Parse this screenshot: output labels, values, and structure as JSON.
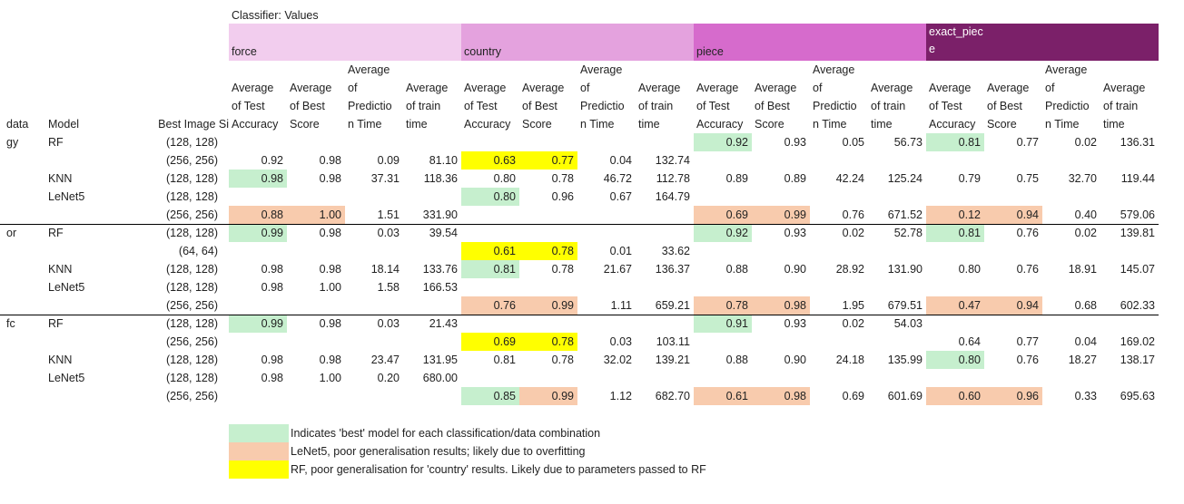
{
  "header": {
    "classifier_values": "Classifier: Values",
    "groups": [
      {
        "label": "force",
        "color": "#f2cdee"
      },
      {
        "label": "country",
        "color": "#e4a2de"
      },
      {
        "label": "piece",
        "color": "#d66bcc"
      },
      {
        "label": "exact_piece",
        "color": "#7b2069"
      }
    ],
    "row_labels": [
      "data",
      "gy",
      "Model",
      "Best Image Si"
    ],
    "metrics": [
      "Average of Test Accuracy",
      "Average of Best Score",
      "Average of Prediction Time",
      "Average of train time"
    ]
  },
  "colors": {
    "green": "#c6efce",
    "salmon": "#f8cbad",
    "yellow": "#ffff00"
  },
  "rows": [
    {
      "ds": "gy",
      "model": "RF",
      "size": "(128, 128)",
      "cells": [
        "",
        "",
        "",
        "",
        "",
        "",
        "",
        "",
        "0.92",
        "0.93",
        "0.05",
        "56.73",
        "0.81",
        "0.77",
        "0.02",
        "136.31"
      ],
      "hl": [
        "",
        "",
        "",
        "",
        "",
        "",
        "",
        "",
        "g",
        "",
        "",
        "",
        "g",
        "",
        "",
        ""
      ]
    },
    {
      "ds": "",
      "model": "",
      "size": "(256, 256)",
      "cells": [
        "0.92",
        "0.98",
        "0.09",
        "81.10",
        "0.63",
        "0.77",
        "0.04",
        "132.74",
        "",
        "",
        "",
        "",
        "",
        "",
        "",
        ""
      ],
      "hl": [
        "",
        "",
        "",
        "",
        "y",
        "y",
        "",
        "",
        "",
        "",
        "",
        "",
        "",
        "",
        "",
        ""
      ]
    },
    {
      "ds": "",
      "model": "KNN",
      "size": "(128, 128)",
      "cells": [
        "0.98",
        "0.98",
        "37.31",
        "118.36",
        "0.80",
        "0.78",
        "46.72",
        "112.78",
        "0.89",
        "0.89",
        "42.24",
        "125.24",
        "0.79",
        "0.75",
        "32.70",
        "119.44"
      ],
      "hl": [
        "g",
        "",
        "",
        "",
        "",
        "",
        "",
        "",
        "",
        "",
        "",
        "",
        "",
        "",
        "",
        ""
      ]
    },
    {
      "ds": "",
      "model": "LeNet5",
      "size": "(128, 128)",
      "cells": [
        "",
        "",
        "",
        "",
        "0.80",
        "0.96",
        "0.67",
        "164.79",
        "",
        "",
        "",
        "",
        "",
        "",
        "",
        ""
      ],
      "hl": [
        "",
        "",
        "",
        "",
        "g",
        "",
        "",
        "",
        "",
        "",
        "",
        "",
        "",
        "",
        "",
        ""
      ]
    },
    {
      "ds": "",
      "model": "",
      "size": "(256, 256)",
      "cells": [
        "0.88",
        "1.00",
        "1.51",
        "331.90",
        "",
        "",
        "",
        "",
        "0.69",
        "0.99",
        "0.76",
        "671.52",
        "0.12",
        "0.94",
        "0.40",
        "579.06"
      ],
      "hl": [
        "s",
        "s",
        "",
        "",
        "",
        "",
        "",
        "",
        "s",
        "s",
        "",
        "",
        "s",
        "s",
        "",
        ""
      ]
    },
    {
      "ds": "or",
      "model": "RF",
      "size": "(128, 128)",
      "cells": [
        "0.99",
        "0.98",
        "0.03",
        "39.54",
        "",
        "",
        "",
        "",
        "0.92",
        "0.93",
        "0.02",
        "52.78",
        "0.81",
        "0.76",
        "0.02",
        "139.81"
      ],
      "hl": [
        "g",
        "",
        "",
        "",
        "",
        "",
        "",
        "",
        "g",
        "",
        "",
        "",
        "g",
        "",
        "",
        ""
      ]
    },
    {
      "ds": "",
      "model": "",
      "size": "(64, 64)",
      "cells": [
        "",
        "",
        "",
        "",
        "0.61",
        "0.78",
        "0.01",
        "33.62",
        "",
        "",
        "",
        "",
        "",
        "",
        "",
        ""
      ],
      "hl": [
        "",
        "",
        "",
        "",
        "y",
        "y",
        "",
        "",
        "",
        "",
        "",
        "",
        "",
        "",
        "",
        ""
      ]
    },
    {
      "ds": "",
      "model": "KNN",
      "size": "(128, 128)",
      "cells": [
        "0.98",
        "0.98",
        "18.14",
        "133.76",
        "0.81",
        "0.78",
        "21.67",
        "136.37",
        "0.88",
        "0.90",
        "28.92",
        "131.90",
        "0.80",
        "0.76",
        "18.91",
        "145.07"
      ],
      "hl": [
        "",
        "",
        "",
        "",
        "g",
        "",
        "",
        "",
        "",
        "",
        "",
        "",
        "",
        "",
        "",
        ""
      ]
    },
    {
      "ds": "",
      "model": "LeNet5",
      "size": "(128, 128)",
      "cells": [
        "0.98",
        "1.00",
        "1.58",
        "166.53",
        "",
        "",
        "",
        "",
        "",
        "",
        "",
        "",
        "",
        "",
        "",
        ""
      ],
      "hl": [
        "",
        "",
        "",
        "",
        "",
        "",
        "",
        "",
        "",
        "",
        "",
        "",
        "",
        "",
        "",
        ""
      ]
    },
    {
      "ds": "",
      "model": "",
      "size": "(256, 256)",
      "cells": [
        "",
        "",
        "",
        "",
        "0.76",
        "0.99",
        "1.11",
        "659.21",
        "0.78",
        "0.98",
        "1.95",
        "679.51",
        "0.47",
        "0.94",
        "0.68",
        "602.33"
      ],
      "hl": [
        "",
        "",
        "",
        "",
        "s",
        "s",
        "",
        "",
        "s",
        "s",
        "",
        "",
        "s",
        "s",
        "",
        ""
      ]
    },
    {
      "ds": "fc",
      "model": "RF",
      "size": "(128, 128)",
      "cells": [
        "0.99",
        "0.98",
        "0.03",
        "21.43",
        "",
        "",
        "",
        "",
        "0.91",
        "0.93",
        "0.02",
        "54.03",
        "",
        "",
        "",
        ""
      ],
      "hl": [
        "g",
        "",
        "",
        "",
        "",
        "",
        "",
        "",
        "g",
        "",
        "",
        "",
        "",
        "",
        "",
        ""
      ]
    },
    {
      "ds": "",
      "model": "",
      "size": "(256, 256)",
      "cells": [
        "",
        "",
        "",
        "",
        "0.69",
        "0.78",
        "0.03",
        "103.11",
        "",
        "",
        "",
        "",
        "0.64",
        "0.77",
        "0.04",
        "169.02"
      ],
      "hl": [
        "",
        "",
        "",
        "",
        "y",
        "y",
        "",
        "",
        "",
        "",
        "",
        "",
        "",
        "",
        "",
        ""
      ]
    },
    {
      "ds": "",
      "model": "KNN",
      "size": "(128, 128)",
      "cells": [
        "0.98",
        "0.98",
        "23.47",
        "131.95",
        "0.81",
        "0.78",
        "32.02",
        "139.21",
        "0.88",
        "0.90",
        "24.18",
        "135.99",
        "0.80",
        "0.76",
        "18.27",
        "138.17"
      ],
      "hl": [
        "",
        "",
        "",
        "",
        "",
        "",
        "",
        "",
        "",
        "",
        "",
        "",
        "g",
        "",
        "",
        ""
      ]
    },
    {
      "ds": "",
      "model": "LeNet5",
      "size": "(128, 128)",
      "cells": [
        "0.98",
        "1.00",
        "0.20",
        "680.00",
        "",
        "",
        "",
        "",
        "",
        "",
        "",
        "",
        "",
        "",
        "",
        ""
      ],
      "hl": [
        "",
        "",
        "",
        "",
        "",
        "",
        "",
        "",
        "",
        "",
        "",
        "",
        "",
        "",
        "",
        ""
      ]
    },
    {
      "ds": "",
      "model": "",
      "size": "(256, 256)",
      "cells": [
        "",
        "",
        "",
        "",
        "0.85",
        "0.99",
        "1.12",
        "682.70",
        "0.61",
        "0.98",
        "0.69",
        "601.69",
        "0.60",
        "0.96",
        "0.33",
        "695.63"
      ],
      "hl": [
        "",
        "",
        "",
        "",
        "g",
        "s",
        "",
        "",
        "s",
        "s",
        "",
        "",
        "s",
        "s",
        "",
        ""
      ]
    }
  ],
  "legend": [
    {
      "color": "green",
      "text": "Indicates 'best' model for each classification/data combination"
    },
    {
      "color": "salmon",
      "text": "LeNet5, poor generalisation results; likely due to overfitting"
    },
    {
      "color": "yellow",
      "text": "RF, poor generalisation for 'country' results.  Likely due to parameters passed to RF"
    }
  ]
}
